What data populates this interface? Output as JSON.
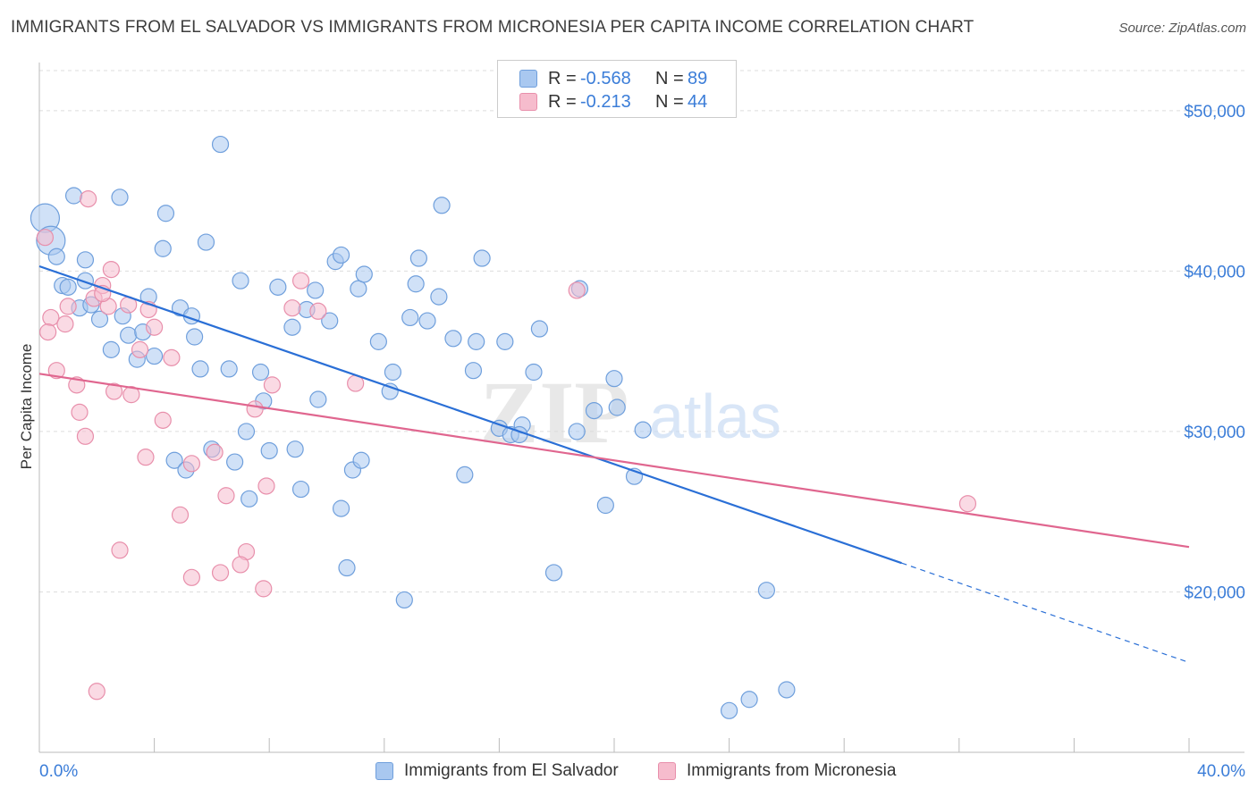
{
  "title": "IMMIGRANTS FROM EL SALVADOR VS IMMIGRANTS FROM MICRONESIA PER CAPITA INCOME CORRELATION CHART",
  "source": "Source: ZipAtlas.com",
  "watermark": {
    "zip": "ZIP",
    "atlas": "atlas"
  },
  "legend": {
    "rows": [
      {
        "r_label": "R =",
        "r_value": "-0.568",
        "n_label": "N =",
        "n_value": "89"
      },
      {
        "r_label": "R =",
        "r_value": "-0.213",
        "n_label": "N =",
        "n_value": "44"
      }
    ]
  },
  "bottom_legend": [
    "Immigrants from El Salvador",
    "Immigrants from Micronesia"
  ],
  "colors": {
    "blue_fill": "#a9c8f0",
    "blue_stroke": "#6f9fdc",
    "blue_line": "#2a6fd6",
    "pink_fill": "#f6bccd",
    "pink_stroke": "#e88fab",
    "pink_line": "#e0668f",
    "tick_label": "#3b7dd8"
  },
  "chart_data": {
    "type": "scatter",
    "title": "IMMIGRANTS FROM EL SALVADOR VS IMMIGRANTS FROM MICRONESIA PER CAPITA INCOME CORRELATION CHART",
    "xlabel": "",
    "ylabel": "Per Capita Income",
    "xlim": [
      0,
      40
    ],
    "ylim": [
      10000,
      53000
    ],
    "x_tick_labels": [
      "0.0%",
      "40.0%"
    ],
    "y_ticks": [
      20000,
      30000,
      40000,
      50000
    ],
    "y_tick_labels": [
      "$20,000",
      "$30,000",
      "$40,000",
      "$50,000"
    ],
    "grid": true,
    "legend_position": "top-center",
    "series": [
      {
        "name": "Immigrants from El Salvador",
        "color": "#a9c8f0",
        "trend": {
          "x": [
            0,
            30.0
          ],
          "y": [
            40300,
            21800
          ],
          "dashed_to": {
            "x": 40,
            "y": 15600
          }
        },
        "points": [
          {
            "x": 0.2,
            "y": 43300,
            "big": true
          },
          {
            "x": 0.4,
            "y": 41900,
            "big": true
          },
          {
            "x": 0.6,
            "y": 40900
          },
          {
            "x": 1.2,
            "y": 44700
          },
          {
            "x": 2.8,
            "y": 44600
          },
          {
            "x": 6.3,
            "y": 47900
          },
          {
            "x": 4.4,
            "y": 43600
          },
          {
            "x": 4.3,
            "y": 41400
          },
          {
            "x": 5.8,
            "y": 41800
          },
          {
            "x": 1.6,
            "y": 40700
          },
          {
            "x": 0.8,
            "y": 39100
          },
          {
            "x": 1.0,
            "y": 39000
          },
          {
            "x": 1.6,
            "y": 39400
          },
          {
            "x": 1.4,
            "y": 37700
          },
          {
            "x": 1.8,
            "y": 37900
          },
          {
            "x": 2.1,
            "y": 37000
          },
          {
            "x": 2.9,
            "y": 37200
          },
          {
            "x": 3.8,
            "y": 38400
          },
          {
            "x": 4.9,
            "y": 37700
          },
          {
            "x": 5.3,
            "y": 37200
          },
          {
            "x": 3.1,
            "y": 36000
          },
          {
            "x": 3.6,
            "y": 36200
          },
          {
            "x": 5.4,
            "y": 35900
          },
          {
            "x": 2.5,
            "y": 35100
          },
          {
            "x": 3.4,
            "y": 34500
          },
          {
            "x": 4.0,
            "y": 34700
          },
          {
            "x": 5.6,
            "y": 33900
          },
          {
            "x": 6.6,
            "y": 33900
          },
          {
            "x": 7.7,
            "y": 33700
          },
          {
            "x": 7.0,
            "y": 39400
          },
          {
            "x": 8.3,
            "y": 39000
          },
          {
            "x": 8.8,
            "y": 36500
          },
          {
            "x": 9.3,
            "y": 37600
          },
          {
            "x": 9.6,
            "y": 38800
          },
          {
            "x": 10.1,
            "y": 36900
          },
          {
            "x": 10.3,
            "y": 40600
          },
          {
            "x": 10.5,
            "y": 41000
          },
          {
            "x": 11.1,
            "y": 38900
          },
          {
            "x": 11.3,
            "y": 39800
          },
          {
            "x": 11.8,
            "y": 35600
          },
          {
            "x": 12.3,
            "y": 33700
          },
          {
            "x": 12.2,
            "y": 32500
          },
          {
            "x": 13.1,
            "y": 39200
          },
          {
            "x": 13.2,
            "y": 40800
          },
          {
            "x": 12.9,
            "y": 37100
          },
          {
            "x": 13.5,
            "y": 36900
          },
          {
            "x": 13.9,
            "y": 38400
          },
          {
            "x": 14.4,
            "y": 35800
          },
          {
            "x": 14.0,
            "y": 44100
          },
          {
            "x": 15.4,
            "y": 40800
          },
          {
            "x": 15.2,
            "y": 35600
          },
          {
            "x": 15.1,
            "y": 33800
          },
          {
            "x": 16.2,
            "y": 35600
          },
          {
            "x": 17.4,
            "y": 36400
          },
          {
            "x": 17.2,
            "y": 33700
          },
          {
            "x": 16.0,
            "y": 30200
          },
          {
            "x": 16.4,
            "y": 29800
          },
          {
            "x": 16.8,
            "y": 30400
          },
          {
            "x": 16.7,
            "y": 29800
          },
          {
            "x": 18.7,
            "y": 30000
          },
          {
            "x": 19.3,
            "y": 31300
          },
          {
            "x": 20.1,
            "y": 31500
          },
          {
            "x": 20.0,
            "y": 33300
          },
          {
            "x": 18.8,
            "y": 38900
          },
          {
            "x": 21.0,
            "y": 30100
          },
          {
            "x": 20.7,
            "y": 27200
          },
          {
            "x": 19.7,
            "y": 25400
          },
          {
            "x": 17.9,
            "y": 21200
          },
          {
            "x": 14.8,
            "y": 27300
          },
          {
            "x": 10.9,
            "y": 27600
          },
          {
            "x": 11.2,
            "y": 28200
          },
          {
            "x": 10.5,
            "y": 25200
          },
          {
            "x": 10.7,
            "y": 21500
          },
          {
            "x": 12.7,
            "y": 19500
          },
          {
            "x": 9.7,
            "y": 32000
          },
          {
            "x": 8.9,
            "y": 28900
          },
          {
            "x": 8.0,
            "y": 28800
          },
          {
            "x": 9.1,
            "y": 26400
          },
          {
            "x": 7.2,
            "y": 30000
          },
          {
            "x": 7.8,
            "y": 31900
          },
          {
            "x": 6.8,
            "y": 28100
          },
          {
            "x": 6.0,
            "y": 28900
          },
          {
            "x": 7.3,
            "y": 25800
          },
          {
            "x": 4.7,
            "y": 28200
          },
          {
            "x": 5.1,
            "y": 27600
          },
          {
            "x": 25.3,
            "y": 20100
          },
          {
            "x": 24.0,
            "y": 12600
          },
          {
            "x": 24.7,
            "y": 13300
          },
          {
            "x": 26.0,
            "y": 13900
          }
        ]
      },
      {
        "name": "Immigrants from Micronesia",
        "color": "#f6bccd",
        "trend": {
          "x": [
            0,
            40
          ],
          "y": [
            33600,
            22800
          ]
        },
        "points": [
          {
            "x": 0.2,
            "y": 42100
          },
          {
            "x": 1.7,
            "y": 44500
          },
          {
            "x": 2.5,
            "y": 40100
          },
          {
            "x": 2.2,
            "y": 39100
          },
          {
            "x": 1.9,
            "y": 38300
          },
          {
            "x": 1.0,
            "y": 37800
          },
          {
            "x": 0.4,
            "y": 37100
          },
          {
            "x": 0.9,
            "y": 36700
          },
          {
            "x": 0.3,
            "y": 36200
          },
          {
            "x": 2.4,
            "y": 37800
          },
          {
            "x": 3.1,
            "y": 37900
          },
          {
            "x": 3.8,
            "y": 37600
          },
          {
            "x": 4.0,
            "y": 36500
          },
          {
            "x": 3.5,
            "y": 35100
          },
          {
            "x": 4.6,
            "y": 34600
          },
          {
            "x": 0.6,
            "y": 33800
          },
          {
            "x": 1.3,
            "y": 32900
          },
          {
            "x": 2.6,
            "y": 32500
          },
          {
            "x": 3.2,
            "y": 32300
          },
          {
            "x": 1.4,
            "y": 31200
          },
          {
            "x": 4.3,
            "y": 30700
          },
          {
            "x": 1.6,
            "y": 29700
          },
          {
            "x": 3.7,
            "y": 28400
          },
          {
            "x": 5.3,
            "y": 28000
          },
          {
            "x": 6.1,
            "y": 28700
          },
          {
            "x": 7.5,
            "y": 31400
          },
          {
            "x": 8.1,
            "y": 32900
          },
          {
            "x": 8.8,
            "y": 37700
          },
          {
            "x": 9.1,
            "y": 39400
          },
          {
            "x": 9.7,
            "y": 37500
          },
          {
            "x": 11.0,
            "y": 33000
          },
          {
            "x": 6.5,
            "y": 26000
          },
          {
            "x": 7.9,
            "y": 26600
          },
          {
            "x": 4.9,
            "y": 24800
          },
          {
            "x": 2.8,
            "y": 22600
          },
          {
            "x": 7.2,
            "y": 22500
          },
          {
            "x": 7.0,
            "y": 21700
          },
          {
            "x": 6.3,
            "y": 21200
          },
          {
            "x": 5.3,
            "y": 20900
          },
          {
            "x": 7.8,
            "y": 20200
          },
          {
            "x": 2.0,
            "y": 13800
          },
          {
            "x": 18.7,
            "y": 38800
          },
          {
            "x": 32.3,
            "y": 25500
          },
          {
            "x": 2.2,
            "y": 38600
          }
        ]
      }
    ]
  }
}
